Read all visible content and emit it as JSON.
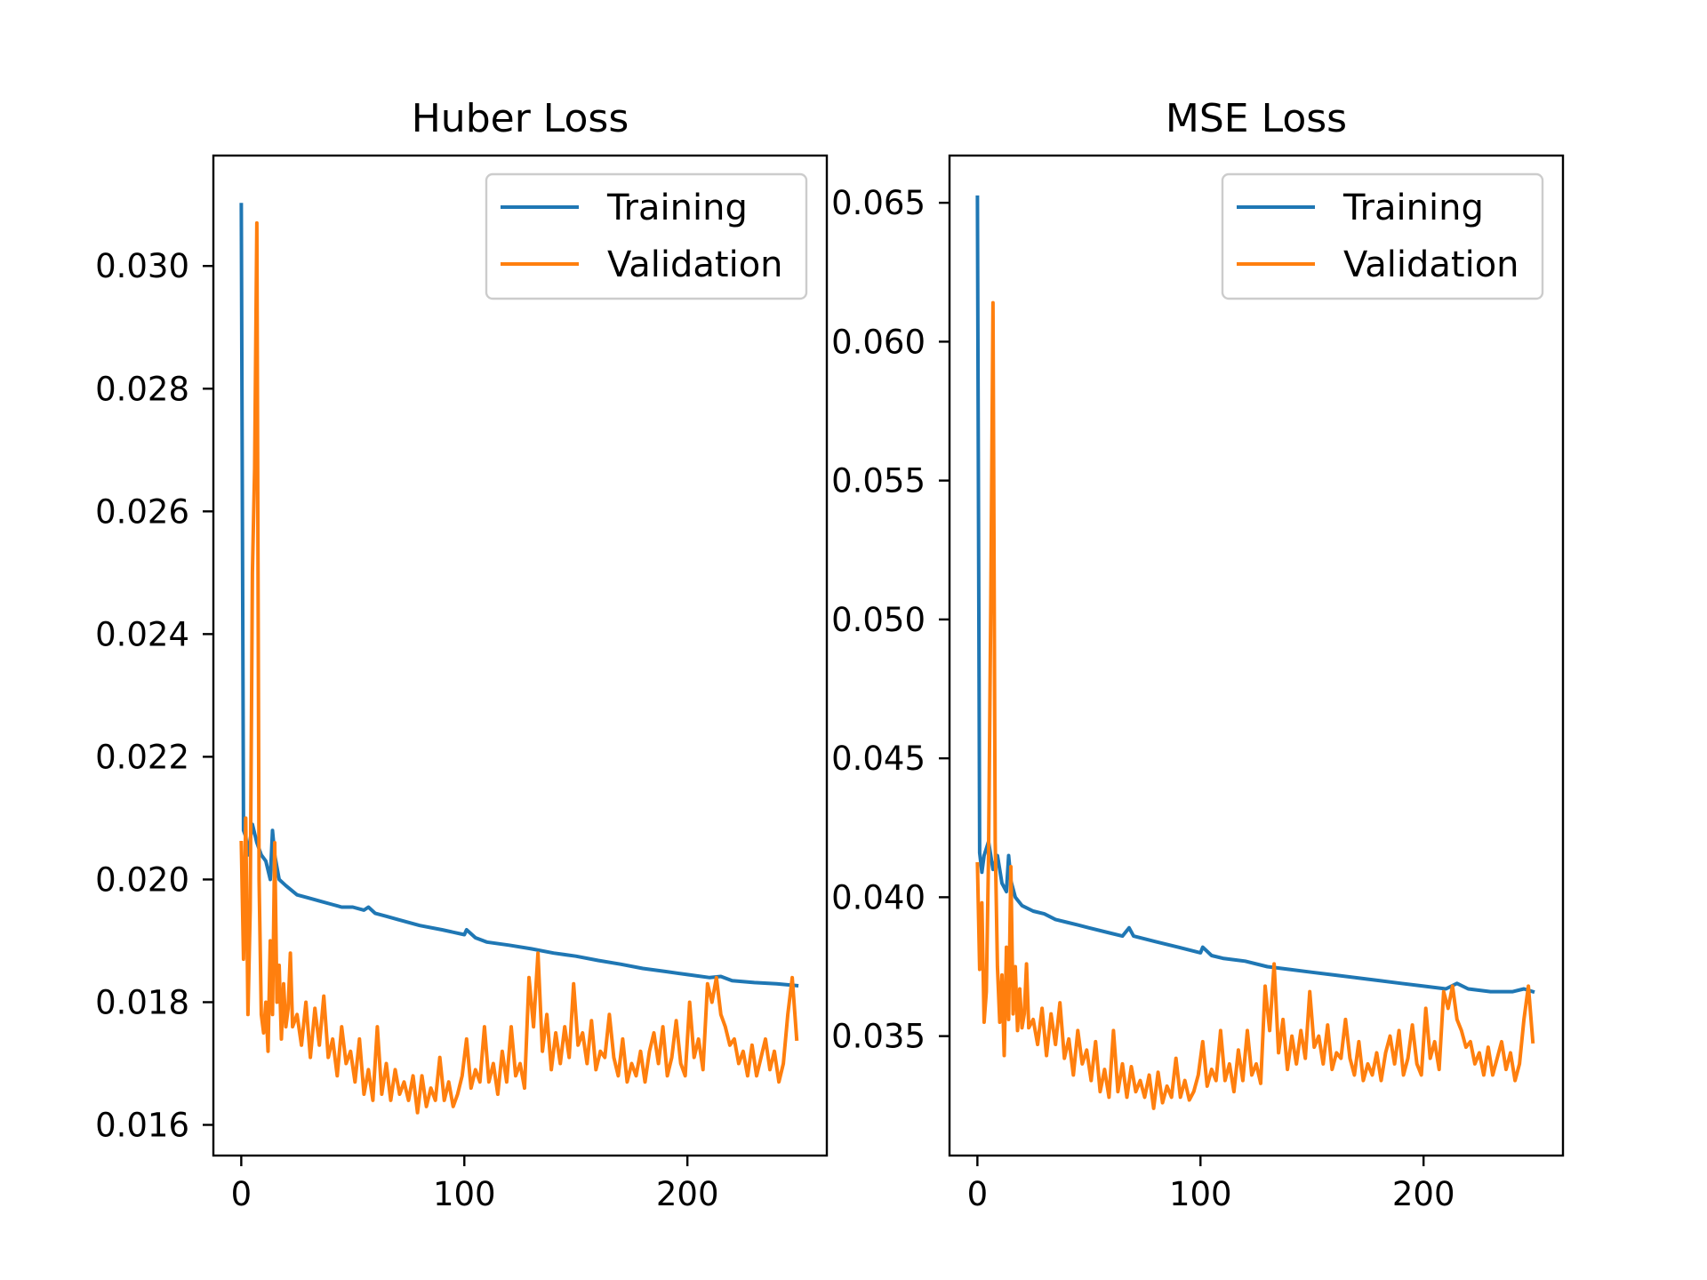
{
  "colors": {
    "training": "#1f77b4",
    "validation": "#ff7f0e",
    "axes": "#000000",
    "background": "#ffffff"
  },
  "chart_data": [
    {
      "type": "line",
      "title": "Huber Loss",
      "xlabel": "",
      "ylabel": "",
      "xlim": [
        -12.5,
        262.5
      ],
      "ylim": [
        0.0155,
        0.0318
      ],
      "xticks": [
        0,
        100,
        200
      ],
      "xtick_labels": [
        "0",
        "100",
        "200"
      ],
      "yticks": [
        0.016,
        0.018,
        0.02,
        0.022,
        0.024,
        0.026,
        0.028,
        0.03
      ],
      "ytick_labels": [
        "0.016",
        "0.018",
        "0.020",
        "0.022",
        "0.024",
        "0.026",
        "0.028",
        "0.030"
      ],
      "grid": false,
      "legend_position": "upper right",
      "series": [
        {
          "name": "Training",
          "color": "#1f77b4",
          "x": [
            0,
            1,
            2,
            3,
            5,
            7,
            9,
            11,
            13,
            14,
            15,
            17,
            20,
            25,
            30,
            35,
            40,
            45,
            50,
            55,
            57,
            60,
            65,
            70,
            80,
            90,
            100,
            101,
            105,
            110,
            120,
            130,
            140,
            150,
            160,
            170,
            180,
            190,
            200,
            210,
            215,
            220,
            230,
            240,
            249
          ],
          "y": [
            0.031,
            0.0208,
            0.0207,
            0.0204,
            0.0209,
            0.0206,
            0.0204,
            0.0203,
            0.02,
            0.0208,
            0.0204,
            0.02,
            0.0199,
            0.01975,
            0.0197,
            0.01965,
            0.0196,
            0.01955,
            0.01955,
            0.0195,
            0.01955,
            0.01945,
            0.0194,
            0.01935,
            0.01925,
            0.01918,
            0.0191,
            0.01918,
            0.01905,
            0.01898,
            0.01893,
            0.01887,
            0.0188,
            0.01875,
            0.01868,
            0.01862,
            0.01855,
            0.0185,
            0.01845,
            0.0184,
            0.01842,
            0.01835,
            0.01832,
            0.0183,
            0.01827
          ]
        },
        {
          "name": "Validation",
          "color": "#ff7f0e",
          "x": [
            0,
            1,
            2,
            3,
            4,
            5,
            6,
            7,
            8,
            9,
            10,
            11,
            12,
            13,
            14,
            15,
            16,
            17,
            18,
            19,
            20,
            21,
            22,
            23,
            25,
            27,
            29,
            31,
            33,
            35,
            37,
            39,
            41,
            43,
            45,
            47,
            49,
            51,
            53,
            55,
            57,
            59,
            61,
            63,
            65,
            67,
            69,
            71,
            73,
            75,
            77,
            79,
            81,
            83,
            85,
            87,
            89,
            91,
            93,
            95,
            97,
            99,
            101,
            103,
            105,
            107,
            109,
            111,
            113,
            115,
            117,
            119,
            121,
            123,
            125,
            127,
            129,
            131,
            133,
            135,
            137,
            139,
            141,
            143,
            145,
            147,
            149,
            151,
            153,
            155,
            157,
            159,
            161,
            163,
            165,
            167,
            169,
            171,
            173,
            175,
            177,
            179,
            181,
            183,
            185,
            187,
            189,
            191,
            193,
            195,
            197,
            199,
            201,
            203,
            205,
            207,
            209,
            211,
            213,
            215,
            217,
            219,
            221,
            223,
            225,
            227,
            229,
            231,
            233,
            235,
            237,
            239,
            241,
            243,
            245,
            247,
            249
          ],
          "y": [
            0.0206,
            0.0187,
            0.021,
            0.0178,
            0.0195,
            0.025,
            0.0267,
            0.0307,
            0.02,
            0.0178,
            0.0175,
            0.018,
            0.0172,
            0.019,
            0.0178,
            0.0206,
            0.018,
            0.0186,
            0.0174,
            0.0183,
            0.0176,
            0.0179,
            0.0188,
            0.0176,
            0.0178,
            0.0173,
            0.018,
            0.0171,
            0.0179,
            0.0173,
            0.0181,
            0.0171,
            0.0174,
            0.0168,
            0.0176,
            0.017,
            0.0172,
            0.0167,
            0.0174,
            0.0165,
            0.0169,
            0.0164,
            0.0176,
            0.0165,
            0.017,
            0.0164,
            0.0169,
            0.0165,
            0.0167,
            0.0164,
            0.0168,
            0.0162,
            0.0168,
            0.0163,
            0.0166,
            0.0164,
            0.0171,
            0.0164,
            0.0167,
            0.0163,
            0.0165,
            0.0168,
            0.0174,
            0.0166,
            0.0169,
            0.0167,
            0.0176,
            0.0167,
            0.017,
            0.0165,
            0.0172,
            0.0167,
            0.0176,
            0.0168,
            0.017,
            0.0166,
            0.0184,
            0.0176,
            0.0188,
            0.0172,
            0.0178,
            0.0169,
            0.0175,
            0.017,
            0.0176,
            0.0171,
            0.0183,
            0.0173,
            0.0175,
            0.017,
            0.0177,
            0.0169,
            0.0172,
            0.0171,
            0.0178,
            0.0171,
            0.0168,
            0.0174,
            0.0167,
            0.017,
            0.0168,
            0.0172,
            0.0167,
            0.0172,
            0.0175,
            0.017,
            0.0176,
            0.0168,
            0.0171,
            0.0177,
            0.017,
            0.0168,
            0.018,
            0.0171,
            0.0174,
            0.0169,
            0.0183,
            0.018,
            0.0184,
            0.0178,
            0.0176,
            0.0173,
            0.0174,
            0.017,
            0.0172,
            0.0168,
            0.0173,
            0.0168,
            0.0171,
            0.0174,
            0.0169,
            0.0172,
            0.0167,
            0.017,
            0.0178,
            0.0184,
            0.0174
          ]
        }
      ]
    },
    {
      "type": "line",
      "title": "MSE Loss",
      "xlabel": "",
      "ylabel": "",
      "xlim": [
        -12.5,
        262.5
      ],
      "ylim": [
        0.0307,
        0.0667
      ],
      "xticks": [
        0,
        100,
        200
      ],
      "xtick_labels": [
        "0",
        "100",
        "200"
      ],
      "yticks": [
        0.035,
        0.04,
        0.045,
        0.05,
        0.055,
        0.06,
        0.065
      ],
      "ytick_labels": [
        "0.035",
        "0.040",
        "0.045",
        "0.050",
        "0.055",
        "0.060",
        "0.065"
      ],
      "grid": false,
      "legend_position": "upper right",
      "series": [
        {
          "name": "Training",
          "color": "#1f77b4",
          "x": [
            0,
            1,
            2,
            3,
            5,
            7,
            9,
            11,
            13,
            14,
            15,
            17,
            20,
            25,
            30,
            35,
            40,
            45,
            50,
            60,
            65,
            68,
            70,
            80,
            90,
            100,
            101,
            105,
            110,
            120,
            130,
            140,
            150,
            160,
            170,
            180,
            190,
            200,
            210,
            215,
            220,
            230,
            240,
            245,
            249
          ],
          "y": [
            0.0652,
            0.0416,
            0.0409,
            0.0415,
            0.042,
            0.041,
            0.0415,
            0.0405,
            0.0402,
            0.0415,
            0.0406,
            0.04,
            0.0397,
            0.0395,
            0.0394,
            0.0392,
            0.0391,
            0.039,
            0.0389,
            0.0387,
            0.0386,
            0.0389,
            0.0386,
            0.0384,
            0.0382,
            0.038,
            0.0382,
            0.0379,
            0.0378,
            0.0377,
            0.0375,
            0.0374,
            0.0373,
            0.0372,
            0.0371,
            0.037,
            0.0369,
            0.0368,
            0.0367,
            0.0369,
            0.0367,
            0.0366,
            0.0366,
            0.0367,
            0.0366
          ]
        },
        {
          "name": "Validation",
          "color": "#ff7f0e",
          "x": [
            0,
            1,
            2,
            3,
            4,
            5,
            6,
            7,
            8,
            9,
            10,
            11,
            12,
            13,
            14,
            15,
            16,
            17,
            18,
            19,
            20,
            21,
            22,
            23,
            25,
            27,
            29,
            31,
            33,
            35,
            37,
            39,
            41,
            43,
            45,
            47,
            49,
            51,
            53,
            55,
            57,
            59,
            61,
            63,
            65,
            67,
            69,
            71,
            73,
            75,
            77,
            79,
            81,
            83,
            85,
            87,
            89,
            91,
            93,
            95,
            97,
            99,
            101,
            103,
            105,
            107,
            109,
            111,
            113,
            115,
            117,
            119,
            121,
            123,
            125,
            127,
            129,
            131,
            133,
            135,
            137,
            139,
            141,
            143,
            145,
            147,
            149,
            151,
            153,
            155,
            157,
            159,
            161,
            163,
            165,
            167,
            169,
            171,
            173,
            175,
            177,
            179,
            181,
            183,
            185,
            187,
            189,
            191,
            193,
            195,
            197,
            199,
            201,
            203,
            205,
            207,
            209,
            211,
            213,
            215,
            217,
            219,
            221,
            223,
            225,
            227,
            229,
            231,
            233,
            235,
            237,
            239,
            241,
            243,
            245,
            247,
            249
          ],
          "y": [
            0.0412,
            0.0374,
            0.0398,
            0.0355,
            0.0366,
            0.0415,
            0.0505,
            0.0614,
            0.042,
            0.0375,
            0.0355,
            0.0372,
            0.0343,
            0.0382,
            0.0356,
            0.0411,
            0.0358,
            0.0375,
            0.0352,
            0.0367,
            0.0353,
            0.0358,
            0.0376,
            0.0353,
            0.0356,
            0.0347,
            0.036,
            0.0343,
            0.0358,
            0.0347,
            0.0362,
            0.0342,
            0.0349,
            0.0336,
            0.0352,
            0.034,
            0.0345,
            0.0334,
            0.0348,
            0.033,
            0.0338,
            0.0328,
            0.0352,
            0.033,
            0.034,
            0.0328,
            0.0339,
            0.033,
            0.0334,
            0.0328,
            0.0336,
            0.0324,
            0.0337,
            0.0326,
            0.0332,
            0.0328,
            0.0342,
            0.0328,
            0.0334,
            0.0327,
            0.033,
            0.0336,
            0.0348,
            0.0332,
            0.0338,
            0.0334,
            0.0352,
            0.0334,
            0.034,
            0.033,
            0.0345,
            0.0334,
            0.0352,
            0.0336,
            0.034,
            0.0333,
            0.0368,
            0.0352,
            0.0376,
            0.0344,
            0.0356,
            0.0338,
            0.035,
            0.034,
            0.0352,
            0.0342,
            0.0366,
            0.0346,
            0.035,
            0.034,
            0.0354,
            0.0338,
            0.0344,
            0.0342,
            0.0356,
            0.0342,
            0.0336,
            0.0348,
            0.0334,
            0.034,
            0.0336,
            0.0344,
            0.0334,
            0.0344,
            0.035,
            0.034,
            0.0352,
            0.0336,
            0.0342,
            0.0354,
            0.034,
            0.0336,
            0.036,
            0.0342,
            0.0348,
            0.0338,
            0.0366,
            0.036,
            0.0368,
            0.0356,
            0.0352,
            0.0346,
            0.0348,
            0.034,
            0.0344,
            0.0336,
            0.0346,
            0.0336,
            0.0342,
            0.0348,
            0.0338,
            0.0344,
            0.0334,
            0.034,
            0.0356,
            0.0368,
            0.0348
          ]
        }
      ]
    }
  ]
}
